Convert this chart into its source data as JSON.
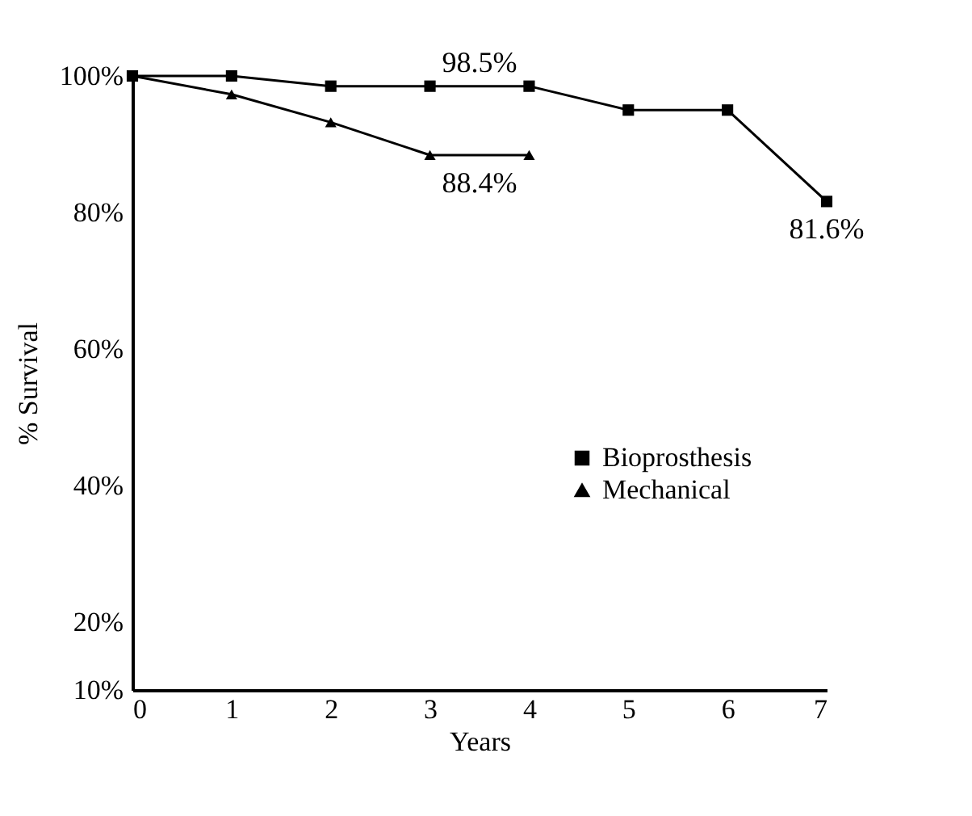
{
  "chart_data": {
    "type": "line",
    "xlabel": "Years",
    "ylabel": "% Survival",
    "x": [
      0,
      1,
      2,
      3,
      4,
      5,
      6,
      7
    ],
    "series": [
      {
        "name": "Bioprosthesis",
        "color": "#000000",
        "marker": "square",
        "values": [
          100,
          100,
          98.5,
          98.5,
          98.5,
          95,
          95,
          81.6
        ],
        "value_labels": [
          null,
          null,
          null,
          "98.5%",
          null,
          null,
          null,
          "81.6%"
        ]
      },
      {
        "name": "Mechanical",
        "color": "#000000",
        "marker": "triangle",
        "values": [
          100,
          97.3,
          93.2,
          88.4,
          88.4,
          null,
          null,
          null
        ],
        "value_labels": [
          null,
          null,
          null,
          "88.4%",
          null,
          null,
          null,
          null
        ]
      }
    ],
    "xlim": [
      0,
      7
    ],
    "xticks": [
      0,
      1,
      2,
      3,
      4,
      5,
      6,
      7
    ],
    "ylim": [
      10,
      100
    ],
    "yticks": [
      {
        "value": 10,
        "label": "10%"
      },
      {
        "value": 20,
        "label": "20%"
      },
      {
        "value": 40,
        "label": "40%"
      },
      {
        "value": 60,
        "label": "60%"
      },
      {
        "value": 80,
        "label": "80%"
      },
      {
        "value": 100,
        "label": "100%"
      }
    ],
    "grid": false,
    "legend": "right",
    "line_style": "solid"
  }
}
